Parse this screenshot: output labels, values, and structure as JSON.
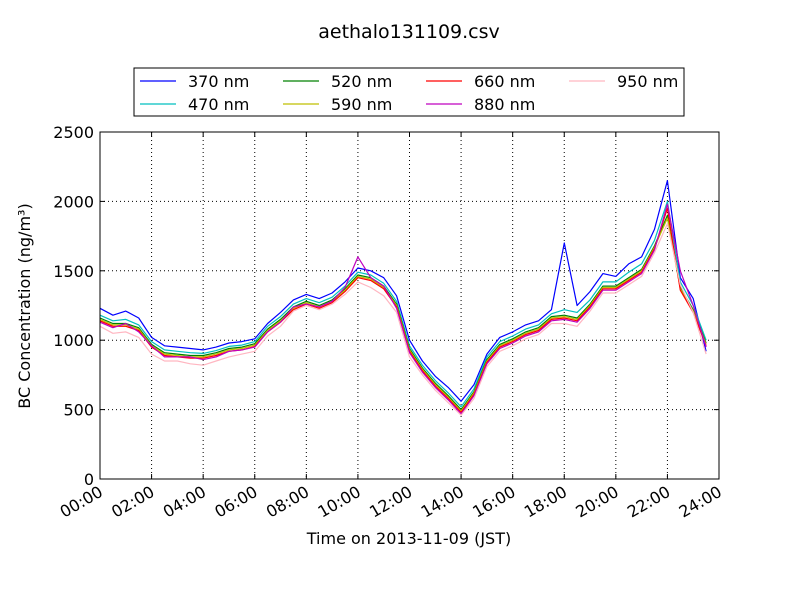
{
  "chart_data": {
    "type": "line",
    "title": "aethalo131109.csv",
    "xlabel": "Time on 2013-11-09 (JST)",
    "ylabel": "BC Concentration (ng/m³)",
    "xlim": [
      0,
      24
    ],
    "ylim": [
      0,
      2500
    ],
    "grid": true,
    "legend_position": "top",
    "x_ticks": [
      {
        "value": 0,
        "label": "00:00"
      },
      {
        "value": 2,
        "label": "02:00"
      },
      {
        "value": 4,
        "label": "04:00"
      },
      {
        "value": 6,
        "label": "06:00"
      },
      {
        "value": 8,
        "label": "08:00"
      },
      {
        "value": 10,
        "label": "10:00"
      },
      {
        "value": 12,
        "label": "12:00"
      },
      {
        "value": 14,
        "label": "14:00"
      },
      {
        "value": 16,
        "label": "16:00"
      },
      {
        "value": 18,
        "label": "18:00"
      },
      {
        "value": 20,
        "label": "20:00"
      },
      {
        "value": 22,
        "label": "22:00"
      },
      {
        "value": 24,
        "label": "24:00"
      }
    ],
    "y_ticks": [
      {
        "value": 0,
        "label": "0"
      },
      {
        "value": 500,
        "label": "500"
      },
      {
        "value": 1000,
        "label": "1000"
      },
      {
        "value": 1500,
        "label": "1500"
      },
      {
        "value": 2000,
        "label": "2000"
      },
      {
        "value": 2500,
        "label": "2500"
      }
    ],
    "x": [
      0.0,
      0.5,
      1.0,
      1.5,
      2.0,
      2.5,
      3.0,
      3.5,
      4.0,
      4.5,
      5.0,
      5.5,
      6.0,
      6.5,
      7.0,
      7.5,
      8.0,
      8.5,
      9.0,
      9.5,
      10.0,
      10.5,
      11.0,
      11.5,
      12.0,
      12.5,
      13.0,
      13.5,
      14.0,
      14.5,
      15.0,
      15.5,
      16.0,
      16.5,
      17.0,
      17.5,
      18.0,
      18.5,
      19.0,
      19.5,
      20.0,
      20.5,
      21.0,
      21.5,
      22.0,
      22.5,
      23.0,
      23.5
    ],
    "series": [
      {
        "name": "370 nm",
        "color": "#0000ff",
        "values": [
          1230,
          1180,
          1210,
          1160,
          1020,
          960,
          950,
          940,
          930,
          950,
          980,
          990,
          1010,
          1120,
          1200,
          1290,
          1330,
          1300,
          1340,
          1420,
          1520,
          1500,
          1450,
          1320,
          1000,
          850,
          740,
          660,
          560,
          680,
          900,
          1020,
          1060,
          1110,
          1140,
          1220,
          1700,
          1250,
          1350,
          1480,
          1460,
          1550,
          1600,
          1800,
          2150,
          1450,
          1300,
          920
        ]
      },
      {
        "name": "470 nm",
        "color": "#00bfbf",
        "values": [
          1180,
          1140,
          1150,
          1110,
          990,
          930,
          920,
          910,
          905,
          925,
          955,
          965,
          990,
          1100,
          1170,
          1260,
          1300,
          1270,
          1310,
          1390,
          1490,
          1470,
          1410,
          1280,
          960,
          820,
          710,
          620,
          520,
          650,
          880,
          990,
          1030,
          1080,
          1110,
          1190,
          1220,
          1200,
          1290,
          1420,
          1420,
          1490,
          1550,
          1720,
          2000,
          1420,
          1250,
          1000
        ]
      },
      {
        "name": "520 nm",
        "color": "#008000",
        "values": [
          1160,
          1120,
          1120,
          1090,
          970,
          910,
          900,
          890,
          890,
          910,
          940,
          950,
          975,
          1080,
          1150,
          1240,
          1280,
          1250,
          1290,
          1370,
          1470,
          1450,
          1390,
          1260,
          940,
          800,
          690,
          600,
          500,
          630,
          860,
          970,
          1010,
          1060,
          1090,
          1170,
          1180,
          1160,
          1260,
          1390,
          1390,
          1450,
          1510,
          1680,
          1900,
          1380,
          1220,
          980
        ]
      },
      {
        "name": "590 nm",
        "color": "#bfbf00",
        "values": [
          1150,
          1110,
          1110,
          1080,
          960,
          900,
          890,
          880,
          880,
          900,
          930,
          940,
          965,
          1070,
          1140,
          1230,
          1270,
          1240,
          1280,
          1360,
          1460,
          1440,
          1380,
          1250,
          930,
          790,
          680,
          590,
          490,
          620,
          850,
          960,
          1000,
          1050,
          1080,
          1160,
          1170,
          1150,
          1250,
          1380,
          1380,
          1440,
          1500,
          1670,
          1880,
          1370,
          1210,
          970
        ]
      },
      {
        "name": "660 nm",
        "color": "#ff0000",
        "values": [
          1140,
          1100,
          1100,
          1070,
          950,
          890,
          880,
          870,
          870,
          890,
          920,
          930,
          955,
          1060,
          1130,
          1220,
          1260,
          1230,
          1270,
          1350,
          1450,
          1430,
          1370,
          1240,
          920,
          780,
          670,
          580,
          480,
          610,
          840,
          950,
          990,
          1040,
          1070,
          1150,
          1160,
          1140,
          1240,
          1370,
          1370,
          1430,
          1490,
          1660,
          1950,
          1360,
          1200,
          960
        ]
      },
      {
        "name": "880 nm",
        "color": "#bf00bf",
        "values": [
          1130,
          1090,
          1120,
          1060,
          960,
          880,
          880,
          880,
          860,
          880,
          920,
          930,
          950,
          1060,
          1130,
          1240,
          1260,
          1240,
          1280,
          1380,
          1600,
          1450,
          1390,
          1230,
          910,
          770,
          660,
          570,
          470,
          600,
          830,
          940,
          980,
          1030,
          1060,
          1140,
          1150,
          1130,
          1230,
          1360,
          1360,
          1420,
          1480,
          1650,
          1980,
          1500,
          1250,
          950
        ]
      },
      {
        "name": "950 nm",
        "color": "#ffb6c1",
        "values": [
          1100,
          1050,
          1060,
          1020,
          900,
          850,
          850,
          830,
          820,
          850,
          880,
          900,
          920,
          1030,
          1100,
          1210,
          1250,
          1220,
          1260,
          1330,
          1420,
          1380,
          1320,
          1200,
          880,
          750,
          640,
          550,
          460,
          580,
          810,
          920,
          960,
          1010,
          1040,
          1120,
          1120,
          1100,
          1210,
          1340,
          1340,
          1400,
          1460,
          1630,
          1840,
          1400,
          1200,
          900
        ]
      }
    ]
  }
}
